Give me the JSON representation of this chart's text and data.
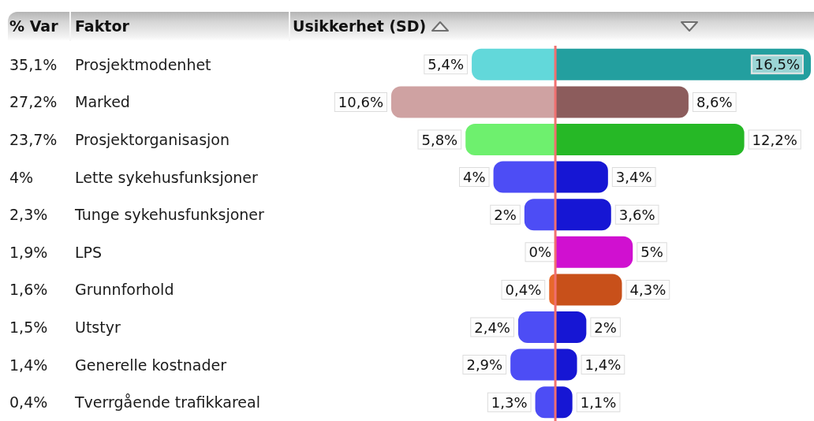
{
  "chart_data": [
    {
      "type": "bar",
      "orientation": "horizontal",
      "xlabel": "Usikkerhet (SD)",
      "ylabel": "Faktor",
      "categories": [
        "Prosjektmodenhet",
        "Marked",
        "Prosjektorganisasjon",
        "Lette sykehusfunksjoner",
        "Tunge sykehusfunksjoner",
        "LPS",
        "Grunnforhold",
        "Utstyr",
        "Generelle kostnader",
        "Tverrgående trafikkareal"
      ],
      "values": [
        5.4,
        10.6,
        5.8,
        4,
        2,
        0,
        0.4,
        2.4,
        2.9,
        1.3
      ],
      "colors": [
        "#62d8da",
        "#cfa2a2",
        "#6ef06e",
        "#4d4df5",
        "#4d4df5",
        "#e010e0",
        "#e8682c",
        "#4d4df5",
        "#4d4df5",
        "#4d4df5"
      ],
      "value_labels": [
        "5,4%",
        "10,6%",
        "5,8%",
        "4%",
        "2%",
        "0%",
        "0,4%",
        "2,4%",
        "2,9%",
        "1,3%"
      ],
      "xlim": [
        10.6,
        0
      ],
      "tick_labels": "y",
      "annotations": [
        "% Var",
        "35,1%",
        "27,2%",
        "23,7%",
        "4%",
        "2,3%",
        "1,9%",
        "1,6%",
        "1,5%",
        "1,4%",
        "0,4%"
      ]
    },
    {
      "type": "bar",
      "orientation": "horizontal",
      "categories": [
        null,
        null,
        null,
        null,
        null,
        null,
        null,
        null,
        null,
        null
      ],
      "values": [
        16.5,
        8.6,
        12.2,
        3.4,
        3.6,
        5,
        4.3,
        2,
        1.4,
        1.1
      ],
      "colors": [
        "#239f9f",
        "#8c5c5c",
        "#26b826",
        "#1616d4",
        "#1616d4",
        "#d010d0",
        "#c8501a",
        "#1616d4",
        "#1616d4",
        "#1616d4"
      ],
      "value_labels": [
        "16,5%",
        "8,6%",
        "12,2%",
        "3,4%",
        "3,6%",
        "5%",
        "4,3%",
        "2%",
        "1,4%",
        "1,1%"
      ],
      "ref_lines": [
        {
          "axis": "x",
          "value": 0,
          "color": "#f07070"
        }
      ]
    }
  ]
}
